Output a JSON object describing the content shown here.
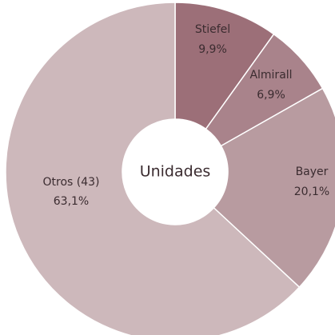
{
  "chart_data": {
    "type": "donut",
    "center_label": "Unidades",
    "categories": [
      "Stiefel",
      "Almirall",
      "Bayer",
      "Otros (43)"
    ],
    "values": [
      9.9,
      6.9,
      20.1,
      63.1
    ],
    "value_labels": [
      "9,9%",
      "6,9%",
      "20,1%",
      "63,1%"
    ],
    "colors": [
      "#9c6f78",
      "#a9838b",
      "#b89ba0",
      "#cdb8bb"
    ]
  }
}
